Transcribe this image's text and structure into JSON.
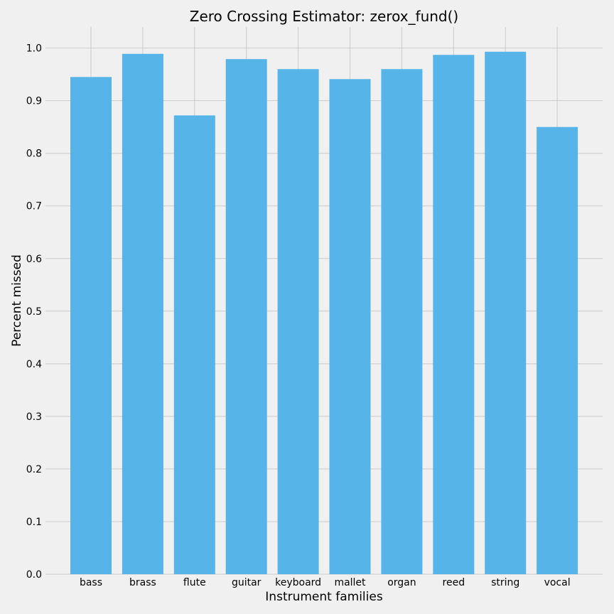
{
  "chart_data": {
    "type": "bar",
    "title": "Zero Crossing Estimator: zerox_fund()",
    "xlabel": "Instrument families",
    "ylabel": "Percent missed",
    "categories": [
      "bass",
      "brass",
      "flute",
      "guitar",
      "keyboard",
      "mallet",
      "organ",
      "reed",
      "string",
      "vocal"
    ],
    "values": [
      0.945,
      0.989,
      0.872,
      0.979,
      0.96,
      0.941,
      0.96,
      0.987,
      0.993,
      0.85
    ],
    "ylim": [
      0,
      1.04
    ],
    "yticks": [
      "0.0",
      "0.1",
      "0.2",
      "0.3",
      "0.4",
      "0.5",
      "0.6",
      "0.7",
      "0.8",
      "0.9",
      "1.0"
    ],
    "grid": true,
    "legend": "none",
    "colors": {
      "bar": "#56b4e9",
      "background": "#f0f0f0",
      "grid": "#cbcbcb"
    }
  }
}
